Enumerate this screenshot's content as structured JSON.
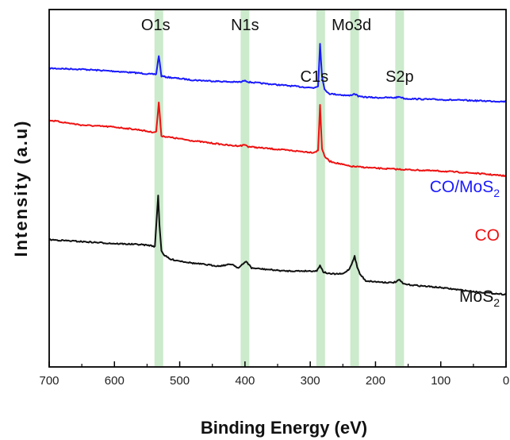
{
  "chart_data": {
    "type": "line",
    "xlabel": "Binding Energy (eV)",
    "ylabel": "Intensity (a.u)",
    "xlim": [
      700,
      0
    ],
    "x_reversed": true,
    "xticks": [
      700,
      600,
      500,
      400,
      300,
      200,
      100,
      0
    ],
    "yticks_shown": false,
    "grid": false,
    "peak_bands": [
      {
        "label": "O1s",
        "x": 532
      },
      {
        "label": "N1s",
        "x": 400
      },
      {
        "label": "C1s",
        "x": 284
      },
      {
        "label": "Mo3d",
        "x": 232
      },
      {
        "label": "S2p",
        "x": 163
      }
    ],
    "series": [
      {
        "name": "CO/MoS2",
        "label_main": "CO/MoS",
        "label_sub": "2",
        "color": "#1a1aff",
        "x": [
          700,
          650,
          600,
          560,
          545,
          536,
          532,
          528,
          520,
          480,
          420,
          405,
          400,
          395,
          380,
          330,
          295,
          288,
          285,
          282,
          278,
          270,
          240,
          232,
          225,
          200,
          170,
          163,
          155,
          100,
          50,
          0
        ],
        "y": [
          1.0,
          0.99,
          0.97,
          0.95,
          0.94,
          0.94,
          1.13,
          0.92,
          0.91,
          0.88,
          0.86,
          0.86,
          0.88,
          0.86,
          0.85,
          0.82,
          0.8,
          0.82,
          1.25,
          0.92,
          0.78,
          0.74,
          0.72,
          0.74,
          0.71,
          0.7,
          0.7,
          0.71,
          0.69,
          0.68,
          0.67,
          0.66
        ]
      },
      {
        "name": "CO",
        "label_main": "CO",
        "label_sub": "",
        "color": "#ee1111",
        "x": [
          700,
          650,
          600,
          560,
          545,
          536,
          532,
          528,
          520,
          480,
          420,
          405,
          400,
          395,
          380,
          330,
          295,
          288,
          285,
          282,
          278,
          270,
          240,
          200,
          170,
          100,
          50,
          0
        ],
        "y": [
          0.47,
          0.42,
          0.4,
          0.37,
          0.35,
          0.35,
          0.65,
          0.31,
          0.3,
          0.26,
          0.21,
          0.21,
          0.22,
          0.2,
          0.19,
          0.16,
          0.14,
          0.16,
          0.63,
          0.18,
          0.1,
          0.05,
          0.0,
          -0.02,
          -0.03,
          -0.05,
          -0.07,
          -0.1
        ]
      },
      {
        "name": "MoS2",
        "label_main": "MoS",
        "label_sub": "2",
        "color": "#111111",
        "x": [
          700,
          650,
          600,
          560,
          545,
          538,
          533,
          531,
          528,
          525,
          515,
          480,
          440,
          420,
          410,
          403,
          398,
          390,
          340,
          300,
          290,
          285,
          280,
          270,
          250,
          240,
          235,
          232,
          228,
          224,
          215,
          200,
          175,
          168,
          163,
          158,
          150,
          100,
          50,
          0
        ],
        "y": [
          -0.75,
          -0.77,
          -0.79,
          -0.8,
          -0.81,
          -0.82,
          -0.3,
          -0.6,
          -0.86,
          -0.9,
          -0.95,
          -0.99,
          -1.02,
          -1.0,
          -1.04,
          -1.0,
          -0.97,
          -1.04,
          -1.07,
          -1.07,
          -1.07,
          -1.01,
          -1.08,
          -1.1,
          -1.1,
          -1.05,
          -0.97,
          -0.92,
          -1.03,
          -1.1,
          -1.17,
          -1.18,
          -1.19,
          -1.18,
          -1.16,
          -1.2,
          -1.21,
          -1.24,
          -1.28,
          -1.31
        ]
      }
    ]
  }
}
